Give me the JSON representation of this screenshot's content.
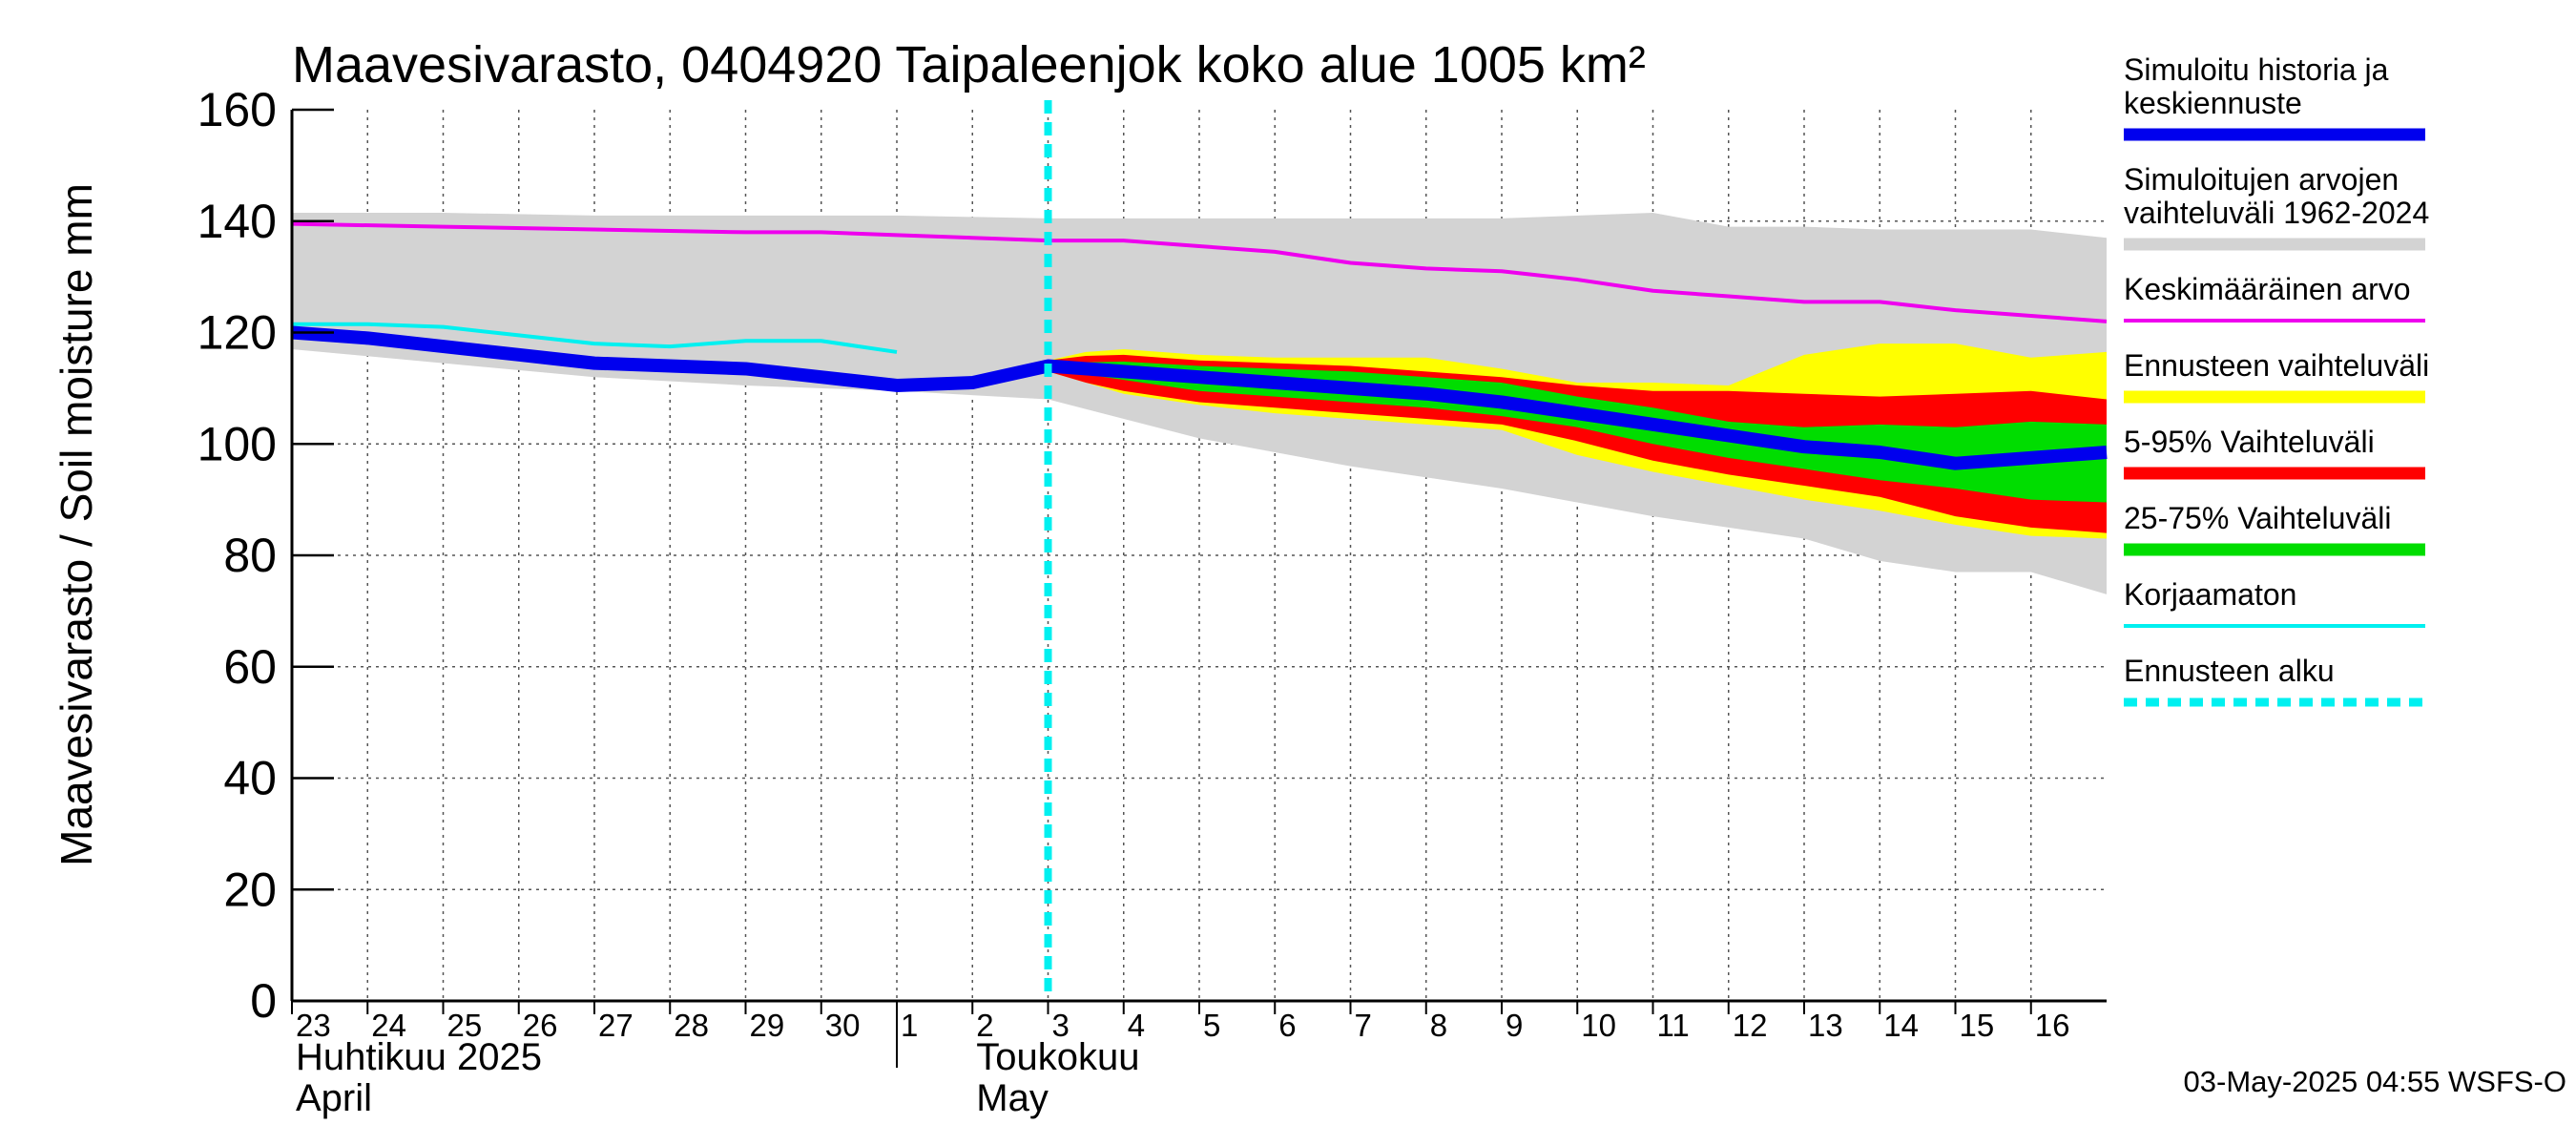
{
  "chart_data": {
    "type": "area",
    "title": "Maavesivarasto, 0404920 Taipaleenjok koko alue 1005 km²",
    "ylabel": "Maavesivarasto / Soil moisture   mm",
    "xlabel": "",
    "ylim": [
      0,
      160
    ],
    "yticks": [
      "0",
      "20",
      "40",
      "60",
      "80",
      "100",
      "120",
      "140",
      "160"
    ],
    "x_day_range": [
      23,
      47
    ],
    "x_ticks": [
      {
        "label": "23",
        "day": 23
      },
      {
        "label": "24",
        "day": 24
      },
      {
        "label": "25",
        "day": 25
      },
      {
        "label": "26",
        "day": 26
      },
      {
        "label": "27",
        "day": 27
      },
      {
        "label": "28",
        "day": 28
      },
      {
        "label": "29",
        "day": 29
      },
      {
        "label": "30",
        "day": 30
      },
      {
        "label": "1",
        "day": 31
      },
      {
        "label": "2",
        "day": 32
      },
      {
        "label": "3",
        "day": 33
      },
      {
        "label": "4",
        "day": 34
      },
      {
        "label": "5",
        "day": 35
      },
      {
        "label": "6",
        "day": 36
      },
      {
        "label": "7",
        "day": 37
      },
      {
        "label": "8",
        "day": 38
      },
      {
        "label": "9",
        "day": 39
      },
      {
        "label": "10",
        "day": 40
      },
      {
        "label": "11",
        "day": 41
      },
      {
        "label": "12",
        "day": 42
      },
      {
        "label": "13",
        "day": 43
      },
      {
        "label": "14",
        "day": 44
      },
      {
        "label": "15",
        "day": 45
      },
      {
        "label": "16",
        "day": 46
      }
    ],
    "month_labels": [
      {
        "line1": "Huhtikuu  2025",
        "line2": "April",
        "day": 23
      },
      {
        "line1": "Toukokuu",
        "line2": "May",
        "day": 32
      }
    ],
    "month_separator_day": 31,
    "forecast_start_day": 33,
    "series": [
      {
        "name": "Simuloitujen arvojen vaihteluväli 1962-2024",
        "kind": "band",
        "color": "#d3d3d3",
        "x": [
          23,
          25,
          27,
          29,
          31,
          33,
          35,
          37,
          39,
          41,
          42,
          43,
          44,
          45,
          46,
          47
        ],
        "upper": [
          141.5,
          141.5,
          141,
          141,
          141,
          140.5,
          140.5,
          140.5,
          140.5,
          141.5,
          139,
          139,
          138.5,
          138.5,
          138.5,
          137
        ],
        "lower": [
          117,
          114.5,
          112,
          110.5,
          109.5,
          108,
          101,
          96,
          92,
          87,
          85,
          83,
          79,
          77,
          77,
          73
        ]
      },
      {
        "name": "Ennusteen vaihteluväli",
        "kind": "band",
        "color": "#ffff00",
        "x": [
          33,
          33.5,
          34,
          35,
          36,
          37,
          38,
          39,
          40,
          41,
          42,
          43,
          44,
          45,
          46,
          47
        ],
        "upper": [
          115,
          116.5,
          117,
          116,
          115.5,
          115.5,
          115.5,
          113.5,
          111,
          111,
          110.5,
          116,
          118,
          118,
          115.5,
          116.5
        ],
        "lower": [
          113,
          111,
          109,
          107,
          105.5,
          104.5,
          103.5,
          102.5,
          98,
          95,
          92.5,
          90,
          88,
          85.5,
          83.5,
          83
        ]
      },
      {
        "name": "5-95% Vaihteluväli",
        "kind": "band",
        "color": "#ff0000",
        "x": [
          33,
          33.5,
          34,
          35,
          36,
          37,
          38,
          39,
          40,
          41,
          42,
          43,
          44,
          45,
          46,
          47
        ],
        "upper": [
          115,
          115.8,
          116,
          115,
          114.5,
          114,
          113,
          112,
          110.5,
          109.5,
          109.5,
          109,
          108.5,
          109,
          109.5,
          108
        ],
        "lower": [
          113,
          111,
          109.5,
          107.5,
          106.5,
          105.5,
          104.5,
          103.5,
          100.5,
          97,
          94.5,
          92.5,
          90.5,
          87,
          85,
          84
        ]
      },
      {
        "name": "25-75% Vaihteluväli",
        "kind": "band",
        "color": "#00dd00",
        "x": [
          33,
          34,
          35,
          36,
          37,
          38,
          39,
          40,
          41,
          42,
          43,
          44,
          45,
          46,
          47
        ],
        "upper": [
          114.5,
          114.8,
          114,
          113.5,
          113,
          112,
          111,
          108.5,
          106.5,
          104,
          103,
          103.5,
          103,
          104,
          103.5
        ],
        "lower": [
          113.5,
          111.5,
          109.5,
          108.5,
          107.5,
          106.5,
          105,
          103,
          100,
          97.5,
          95.5,
          93.5,
          92,
          90,
          89.5
        ]
      },
      {
        "name": "Keskimääräinen arvo",
        "kind": "line",
        "color": "#ee00ee",
        "x": [
          23,
          25,
          27,
          29,
          30,
          31,
          32,
          33,
          34,
          35,
          36,
          37,
          38,
          39,
          40,
          41,
          42,
          43,
          44,
          45,
          46,
          47
        ],
        "y": [
          139.5,
          139,
          138.5,
          138,
          138,
          137.5,
          137,
          136.5,
          136.5,
          135.5,
          134.5,
          132.5,
          131.5,
          131,
          129.5,
          127.5,
          126.5,
          125.5,
          125.5,
          124,
          123,
          122
        ]
      },
      {
        "name": "Korjaamaton",
        "kind": "line",
        "color": "#00f0f0",
        "x": [
          23,
          24,
          25,
          26,
          27,
          28,
          29,
          30,
          31
        ],
        "y": [
          121.5,
          121.5,
          121,
          119.5,
          118,
          117.5,
          118.5,
          118.5,
          116.5
        ]
      },
      {
        "name": "Simuloitu historia ja keskiennuste",
        "kind": "line",
        "color": "#0000ee",
        "x": [
          23,
          24,
          25,
          26,
          27,
          28,
          29,
          30,
          31,
          32,
          33,
          34,
          35,
          36,
          37,
          38,
          39,
          40,
          41,
          42,
          43,
          44,
          45,
          46,
          47
        ],
        "y": [
          120,
          119,
          117.5,
          116,
          114.5,
          114,
          113.5,
          112,
          110.5,
          111,
          114,
          113,
          112,
          111,
          110,
          109,
          107.5,
          105.5,
          103.5,
          101.5,
          99.5,
          98.5,
          96.5,
          97.5,
          98.5
        ]
      }
    ],
    "legend": [
      {
        "line1": "Simuloitu historia ja",
        "line2": "keskiennuste",
        "color": "#0000ee",
        "style": "solid"
      },
      {
        "line1": "Simuloitujen arvojen",
        "line2": "vaihteluväli 1962-2024",
        "color": "#d3d3d3",
        "style": "solid"
      },
      {
        "line1": "Keskimääräinen arvo",
        "line2": "",
        "color": "#ee00ee",
        "style": "thin"
      },
      {
        "line1": "Ennusteen vaihteluväli",
        "line2": "",
        "color": "#ffff00",
        "style": "solid"
      },
      {
        "line1": "5-95% Vaihteluväli",
        "line2": "",
        "color": "#ff0000",
        "style": "solid"
      },
      {
        "line1": "25-75% Vaihteluväli",
        "line2": "",
        "color": "#00dd00",
        "style": "solid"
      },
      {
        "line1": "Korjaamaton",
        "line2": "",
        "color": "#00f0f0",
        "style": "thin"
      },
      {
        "line1": "Ennusteen alku",
        "line2": "",
        "color": "#00f0f0",
        "style": "dashed"
      }
    ],
    "timestamp": "03-May-2025 04:55 WSFS-O"
  }
}
